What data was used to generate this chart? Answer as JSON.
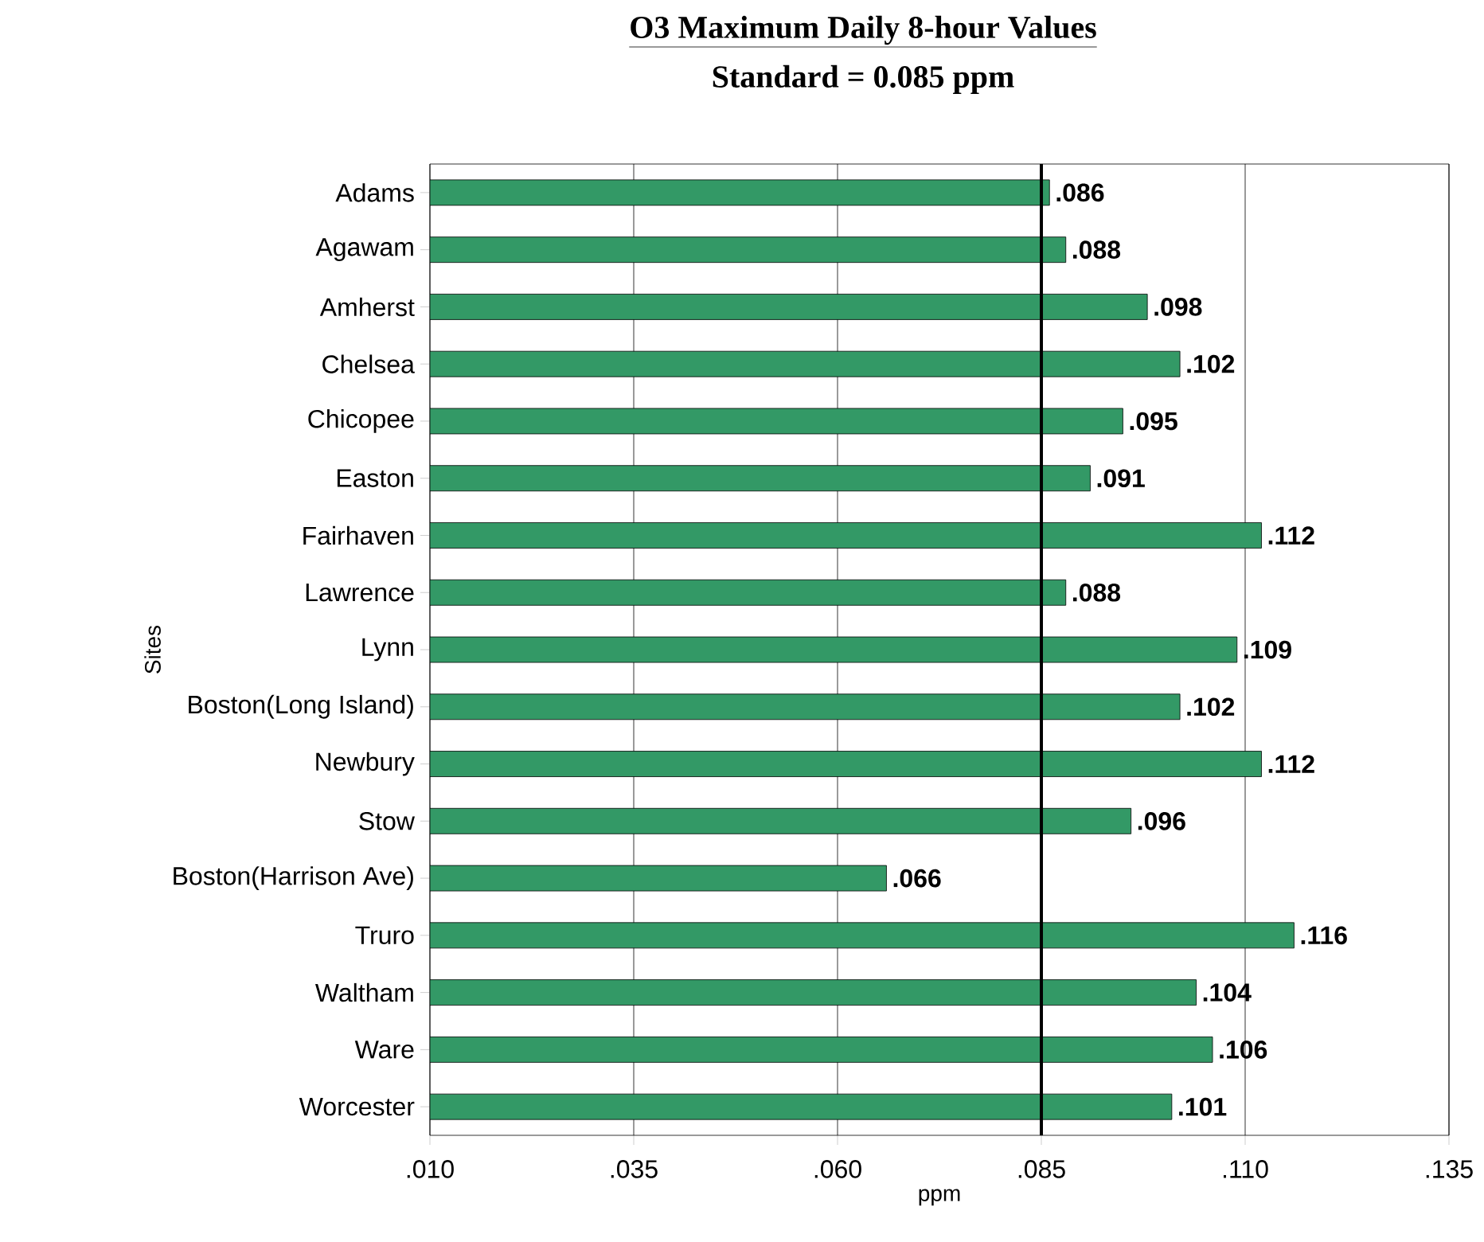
{
  "chart_data": {
    "type": "bar",
    "orientation": "horizontal",
    "title": "O3 Maximum Daily 8-hour Values",
    "subtitle": "Standard = 0.085 ppm",
    "xlabel": "ppm",
    "ylabel": "Sites",
    "categories": [
      "Adams",
      "Agawam",
      "Amherst",
      "Chelsea",
      "Chicopee",
      "Easton",
      "Fairhaven",
      "Lawrence",
      "Lynn",
      "Boston(Long Island)",
      "Newbury",
      "Stow",
      "Boston(Harrison Ave)",
      "Truro",
      "Waltham",
      "Ware",
      "Worcester"
    ],
    "values": [
      0.086,
      0.088,
      0.098,
      0.102,
      0.095,
      0.091,
      0.112,
      0.088,
      0.109,
      0.102,
      0.112,
      0.096,
      0.066,
      0.116,
      0.104,
      0.106,
      0.101
    ],
    "value_labels": [
      ".086",
      ".088",
      ".098",
      ".102",
      ".095",
      ".091",
      ".112",
      ".088",
      ".109",
      ".102",
      ".112",
      ".096",
      ".066",
      ".116",
      ".104",
      ".106",
      ".101"
    ],
    "color": "#339966",
    "xlim": [
      0.01,
      0.135
    ],
    "xticks": [
      {
        "value": 0.01,
        "label": ".010"
      },
      {
        "value": 0.035,
        "label": ".035"
      },
      {
        "value": 0.06,
        "label": ".060"
      },
      {
        "value": 0.085,
        "label": ".085"
      },
      {
        "value": 0.11,
        "label": ".110"
      },
      {
        "value": 0.135,
        "label": ".135"
      }
    ],
    "grid": "x",
    "ref_lines": [
      {
        "axis": "x",
        "value": 0.085,
        "color": "#000000"
      }
    ]
  }
}
